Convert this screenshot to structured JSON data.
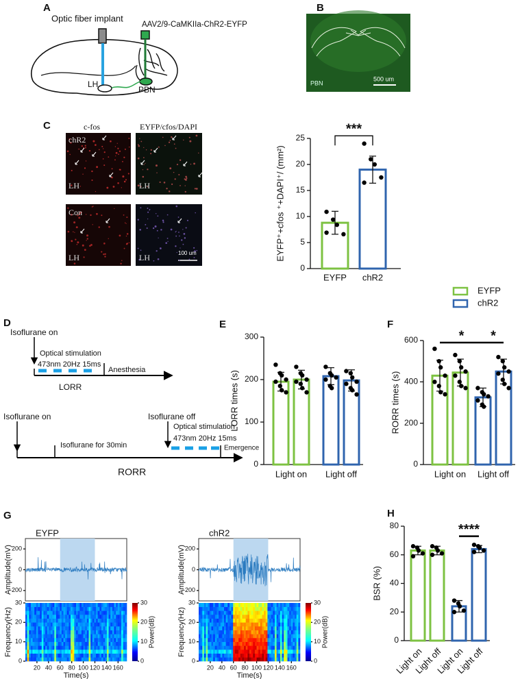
{
  "panel_labels": [
    "A",
    "B",
    "C",
    "D",
    "E",
    "F",
    "G",
    "H"
  ],
  "panel_a": {
    "fiber_label": "Optic fiber implant",
    "virus_label": "AAV2/9-CaMKIIa-ChR2-EYFP",
    "lh_label": "LH",
    "pbn_label": "PBN"
  },
  "panel_b": {
    "region_label": "PBN",
    "scale_bar": "500 um"
  },
  "panel_c_images": {
    "columns": [
      "c-fos",
      "EYFP/cfos/DAPI"
    ],
    "rows": [
      {
        "label": "chR2",
        "region": [
          "LH",
          "LH"
        ]
      },
      {
        "label": "Con",
        "region": [
          "LH",
          "LH"
        ]
      }
    ],
    "scale_bar": "100 um"
  },
  "panel_d": {
    "lorr": {
      "start": "Isoflurane on",
      "stim": "Optical stimulation",
      "params": "473nm 20Hz 15ms",
      "end": "Anesthesia",
      "label": "LORR"
    },
    "rorr": {
      "start": "Isoflurane on",
      "stop": "Isoflurane off",
      "stim": "Optical stimulation",
      "params": "473nm 20Hz 15ms",
      "wait": "Isoflurane for 30min",
      "end": "Emergence",
      "label": "RORR"
    }
  },
  "legend": [
    {
      "name": "EYFP",
      "color": "#7dc242"
    },
    {
      "name": "chR2",
      "color": "#2f64ae"
    }
  ],
  "chart_data": [
    {
      "type": "bar",
      "ylabel": "EYFP⁺+cfos ⁺+DAPI⁺/ (mm²)",
      "categories": [
        "EYFP",
        "chR2"
      ],
      "values": [
        8.8,
        19
      ],
      "errors": [
        2.2,
        2.6
      ],
      "points": [
        [
          10.9,
          9.4,
          8.4,
          6.6,
          6.9
        ],
        [
          24,
          21,
          20,
          17.5,
          16.5
        ]
      ],
      "colors": [
        "#7dc242",
        "#2f64ae"
      ],
      "ylim": [
        0,
        25
      ],
      "yticks": [
        0,
        5,
        10,
        15,
        20,
        25
      ],
      "annotations": [
        {
          "text": "***",
          "from": 0,
          "to": 1,
          "y": 25.5
        }
      ]
    },
    {
      "type": "bar",
      "ylabel": "LORR times (s)",
      "group_labels": [
        "Light on",
        "Light off"
      ],
      "values": [
        195,
        200,
        208,
        198
      ],
      "errors": [
        22,
        22,
        20,
        25
      ],
      "points": [
        [
          235,
          215,
          210,
          200,
          195,
          185,
          175,
          170
        ],
        [
          230,
          215,
          210,
          200,
          195,
          190,
          180,
          170
        ],
        [
          230,
          215,
          210,
          205,
          200,
          185,
          180
        ],
        [
          220,
          215,
          205,
          195,
          190,
          180,
          175,
          165
        ]
      ],
      "colors": [
        "#7dc242",
        "#7dc242",
        "#2f64ae",
        "#2f64ae"
      ],
      "ylim": [
        0,
        300
      ],
      "yticks": [
        0,
        100,
        200,
        300
      ],
      "annotations": []
    },
    {
      "type": "bar",
      "ylabel": "RORR times (s)",
      "group_labels": [
        "Light on",
        "Light off"
      ],
      "values": [
        430,
        445,
        325,
        450
      ],
      "errors": [
        75,
        65,
        45,
        60
      ],
      "points": [
        [
          560,
          500,
          470,
          430,
          400,
          380,
          350,
          340
        ],
        [
          530,
          500,
          470,
          450,
          430,
          400,
          380,
          370
        ],
        [
          370,
          350,
          340,
          330,
          310,
          290,
          280
        ],
        [
          520,
          500,
          470,
          450,
          440,
          410,
          390,
          370
        ]
      ],
      "colors": [
        "#7dc242",
        "#7dc242",
        "#2f64ae",
        "#2f64ae"
      ],
      "ylim": [
        0,
        600
      ],
      "yticks": [
        0,
        200,
        400,
        600
      ],
      "annotations": [
        {
          "text": "*",
          "from": 0,
          "to": 2,
          "y": 590
        },
        {
          "text": "*",
          "from": 2,
          "to": 3,
          "y": 590
        }
      ]
    },
    {
      "type": "eeg",
      "title": "EYFP",
      "ylabel": "Amplitude(mV)",
      "ylim": [
        -300,
        300
      ],
      "yticks": [
        -200,
        0,
        200
      ],
      "freq_label": "Frequency(Hz)",
      "freq_lim": [
        0,
        30
      ],
      "freq_ticks": [
        0,
        10,
        20,
        30
      ],
      "power_label": "Power(dB)",
      "power_lim": [
        0,
        30
      ],
      "power_ticks": [
        0,
        10,
        20,
        30
      ],
      "xlabel": "Time(s)",
      "xlim": [
        0,
        175
      ],
      "xticks": [
        20,
        40,
        60,
        80,
        100,
        120,
        140,
        160
      ],
      "stim_window": [
        60,
        120
      ]
    },
    {
      "type": "eeg",
      "title": "chR2",
      "ylabel": "Amplitude(mV)",
      "ylim": [
        -300,
        300
      ],
      "yticks": [
        -200,
        0,
        200
      ],
      "freq_label": "Frequency(Hz)",
      "freq_lim": [
        0,
        30
      ],
      "freq_ticks": [
        0,
        10,
        20,
        30
      ],
      "power_label": "Power(dB)",
      "power_lim": [
        0,
        30
      ],
      "power_ticks": [
        0,
        10,
        20,
        30
      ],
      "xlabel": "Time(s)",
      "xlim": [
        0,
        175
      ],
      "xticks": [
        20,
        40,
        60,
        80,
        100,
        120,
        140,
        160
      ],
      "stim_window": [
        60,
        120
      ]
    },
    {
      "type": "bar",
      "ylabel": "BSR (%)",
      "categories": [
        "Light on",
        "Light off",
        "Light on",
        "Light off"
      ],
      "values": [
        63,
        63,
        24,
        64
      ],
      "errors": [
        3,
        3,
        4,
        2.5
      ],
      "points": [
        [
          66,
          65,
          63,
          61,
          59
        ],
        [
          66,
          65,
          63,
          61,
          60
        ],
        [
          28,
          26,
          24,
          21,
          20
        ],
        [
          67,
          66,
          65,
          63,
          62
        ]
      ],
      "colors": [
        "#7dc242",
        "#7dc242",
        "#2f64ae",
        "#2f64ae"
      ],
      "ylim": [
        0,
        80
      ],
      "yticks": [
        0,
        20,
        40,
        60,
        80
      ],
      "annotations": [
        {
          "text": "****",
          "from": 2,
          "to": 3,
          "y": 73
        }
      ]
    }
  ]
}
